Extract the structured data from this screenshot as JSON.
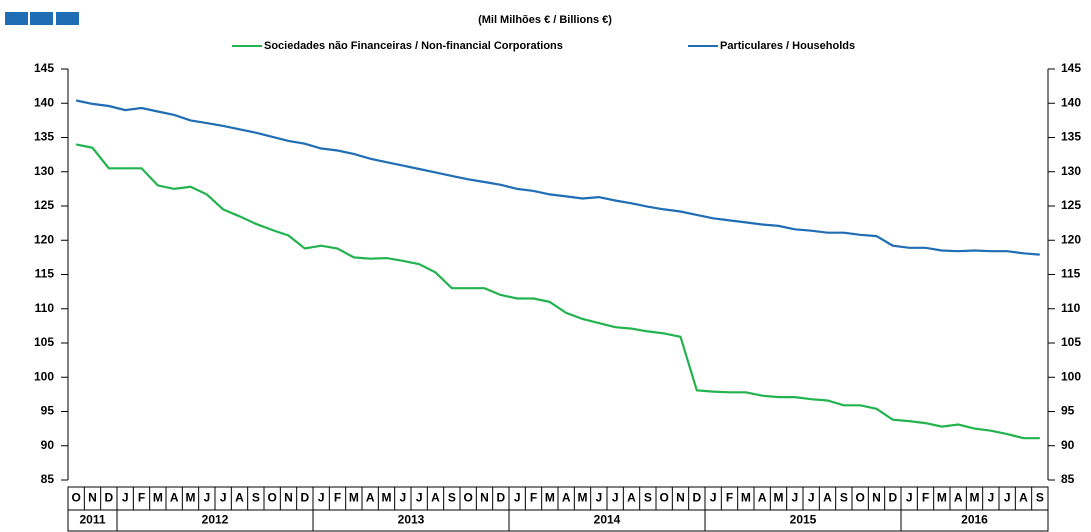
{
  "chart_data": {
    "type": "line",
    "subtitle": "(Mil Milhões € / Billions €)",
    "categories": [
      "O",
      "N",
      "D",
      "J",
      "F",
      "M",
      "A",
      "M",
      "J",
      "J",
      "A",
      "S",
      "O",
      "N",
      "D",
      "J",
      "F",
      "M",
      "A",
      "M",
      "J",
      "J",
      "A",
      "S",
      "O",
      "N",
      "D",
      "J",
      "F",
      "M",
      "A",
      "M",
      "J",
      "J",
      "A",
      "S",
      "O",
      "N",
      "D",
      "J",
      "F",
      "M",
      "A",
      "M",
      "J",
      "J",
      "A",
      "S",
      "O",
      "N",
      "D",
      "J",
      "F",
      "M",
      "A",
      "M",
      "J",
      "J",
      "A",
      "S"
    ],
    "years": [
      "2011",
      "2012",
      "2013",
      "2014",
      "2015",
      "2016"
    ],
    "series": [
      {
        "name": "Sociedades não Financeiras / Non-financial Corporations",
        "color": "#22b34e",
        "values": [
          134,
          133.5,
          130.5,
          130.5,
          130.5,
          128,
          127.5,
          127.8,
          126.7,
          124.5,
          123.5,
          122.4,
          121.5,
          120.7,
          118.8,
          119.2,
          118.8,
          117.5,
          117.3,
          117.4,
          117,
          116.5,
          115.3,
          113,
          113,
          113,
          112,
          111.5,
          111.5,
          111,
          109.4,
          108.5,
          107.9,
          107.3,
          107.1,
          106.7,
          106.4,
          105.9,
          98.1,
          97.9,
          97.8,
          97.8,
          97.3,
          97.1,
          97.1,
          96.8,
          96.6,
          95.9,
          95.9,
          95.4,
          93.8,
          93.6,
          93.3,
          92.8,
          93.1,
          92.5,
          92.2,
          91.7,
          91.1,
          91.1
        ]
      },
      {
        "name": "Particulares / Households",
        "color": "#1f6db4",
        "values": [
          140.4,
          139.9,
          139.6,
          139,
          139.3,
          138.8,
          138.3,
          137.5,
          137.1,
          136.7,
          136.2,
          135.7,
          135.1,
          134.5,
          134.1,
          133.4,
          133.1,
          132.6,
          131.9,
          131.4,
          130.9,
          130.4,
          129.9,
          129.4,
          128.9,
          128.5,
          128.1,
          127.5,
          127.2,
          126.7,
          126.4,
          126.1,
          126.3,
          125.8,
          125.4,
          124.9,
          124.5,
          124.2,
          123.7,
          123.2,
          122.9,
          122.6,
          122.3,
          122.1,
          121.6,
          121.4,
          121.1,
          121.1,
          120.8,
          120.6,
          119.2,
          118.9,
          118.9,
          118.5,
          118.4,
          118.5,
          118.4,
          118.4,
          118.1,
          117.9
        ]
      }
    ],
    "ylim": [
      85,
      145
    ],
    "yticks": [
      85,
      90,
      95,
      100,
      105,
      110,
      115,
      120,
      125,
      130,
      135,
      140,
      145
    ],
    "legend": "top",
    "grid": false
  }
}
